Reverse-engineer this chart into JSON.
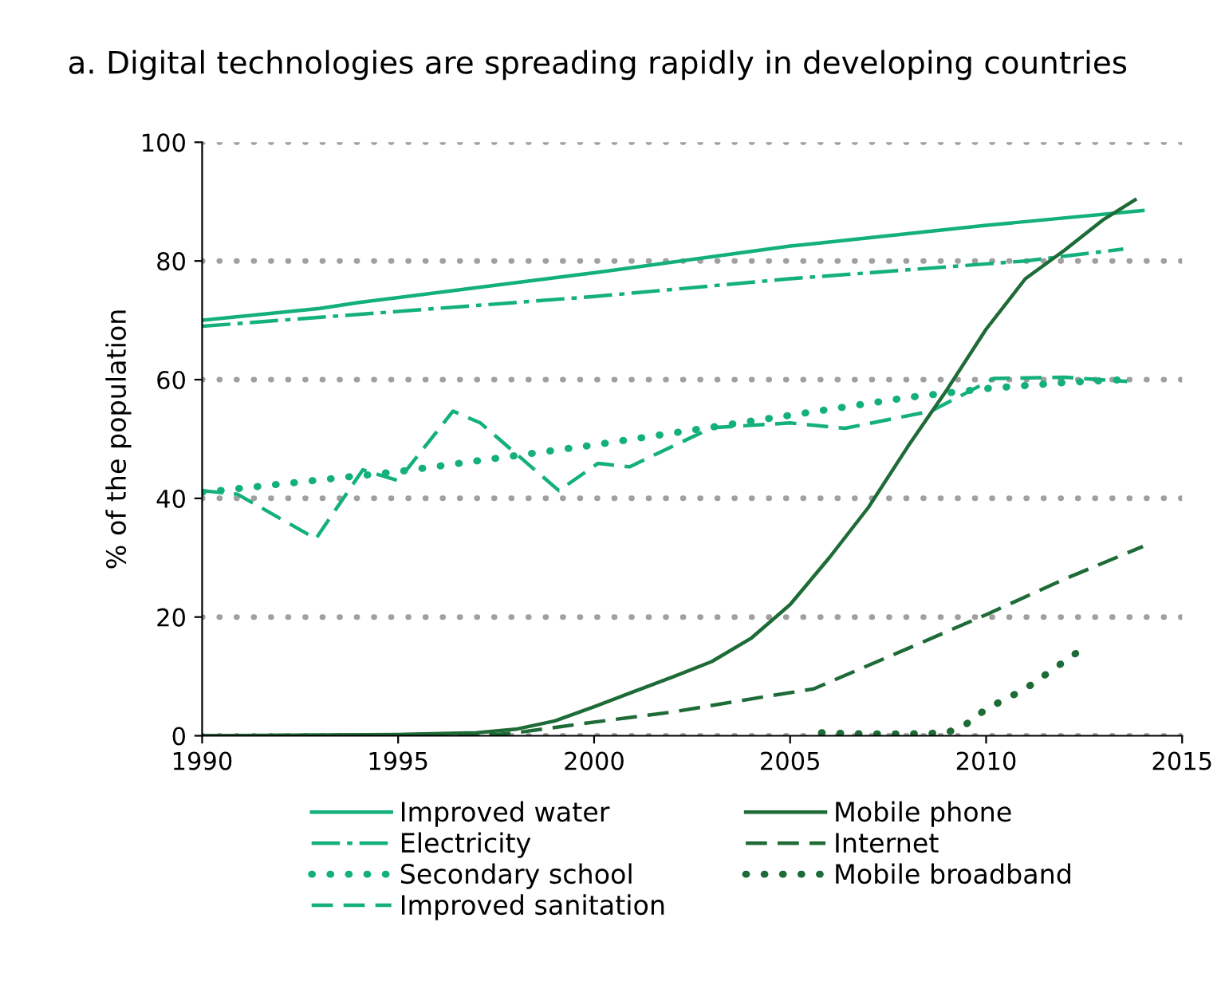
{
  "chart_data": {
    "type": "line",
    "title": "a. Digital technologies are spreading rapidly in developing countries",
    "ylabel": "% of the population",
    "xlim": [
      1990,
      2015
    ],
    "xticks": [
      1990,
      1995,
      2000,
      2005,
      2010,
      2015
    ],
    "ylim": [
      0,
      100
    ],
    "yticks": [
      0,
      20,
      40,
      60,
      80,
      100
    ],
    "grid": "y",
    "legend": "bottom",
    "series": [
      {
        "name": "Improved water",
        "color": "#13b07c",
        "line_style": "solid",
        "x": [
          1990,
          1993,
          1994,
          2000,
          2005,
          2010,
          2014
        ],
        "values": [
          70,
          72,
          73,
          78,
          82.5,
          86,
          88.5
        ]
      },
      {
        "name": "Electricity",
        "color": "#13b07c",
        "line_style": "dashdot",
        "x": [
          1990,
          2000,
          2005,
          2010,
          2011,
          2013.5
        ],
        "values": [
          69,
          74,
          77,
          79.5,
          80,
          82
        ]
      },
      {
        "name": "Secondary school",
        "color": "#13b07c",
        "line_style": "dotted",
        "x": [
          1990,
          1995,
          2000,
          2003,
          2005,
          2008,
          2010,
          2012,
          2013.5
        ],
        "values": [
          41,
          44.5,
          49,
          52,
          54,
          57,
          58.5,
          59.5,
          60
        ]
      },
      {
        "name": "Improved sanitation",
        "color": "#13b07c",
        "line_style": "dashed",
        "x": [
          1990,
          1990.9,
          1992.9,
          1994.1,
          1995,
          1996.4,
          1997.1,
          1999.1,
          2000.1,
          2000.9,
          2003,
          2005,
          2006.4,
          2008.6,
          2010.2,
          2012,
          2013.6
        ],
        "values": [
          41.3,
          40.7,
          33.2,
          44.8,
          43,
          54.7,
          52.7,
          41.3,
          45.9,
          45.3,
          51.9,
          52.7,
          51.8,
          54.7,
          60.2,
          60.4,
          59.7
        ]
      },
      {
        "name": "Mobile phone",
        "color": "#1d6b36",
        "line_style": "solid",
        "x": [
          1990,
          1995,
          1997,
          1998,
          1999,
          2000,
          2001,
          2002,
          2003,
          2004,
          2005,
          2006,
          2007,
          2008,
          2009,
          2010,
          2011,
          2012,
          2013,
          2013.8
        ],
        "values": [
          0,
          0.2,
          0.5,
          1.1,
          2.5,
          4.9,
          7.4,
          9.9,
          12.5,
          16.4,
          22.1,
          30,
          38.5,
          48.7,
          58.3,
          68.5,
          77,
          81.8,
          87,
          90.3
        ]
      },
      {
        "name": "Internet",
        "color": "#1d6b36",
        "line_style": "dashed",
        "x": [
          1990,
          1997.5,
          1998,
          2000,
          2002,
          2004,
          2005.6,
          2008,
          2010,
          2012,
          2014
        ],
        "values": [
          0,
          0.2,
          0.5,
          2.3,
          4,
          6.2,
          7.9,
          14.7,
          20.4,
          26.4,
          31.9
        ]
      },
      {
        "name": "Mobile broadband",
        "color": "#1d6b36",
        "line_style": "dotted",
        "x": [
          2005.8,
          2007,
          2008,
          2009,
          2009.5,
          2010,
          2011,
          2012.4
        ],
        "values": [
          0.5,
          0.3,
          0.3,
          0.5,
          2,
          4.5,
          7.9,
          14.4
        ]
      }
    ]
  }
}
